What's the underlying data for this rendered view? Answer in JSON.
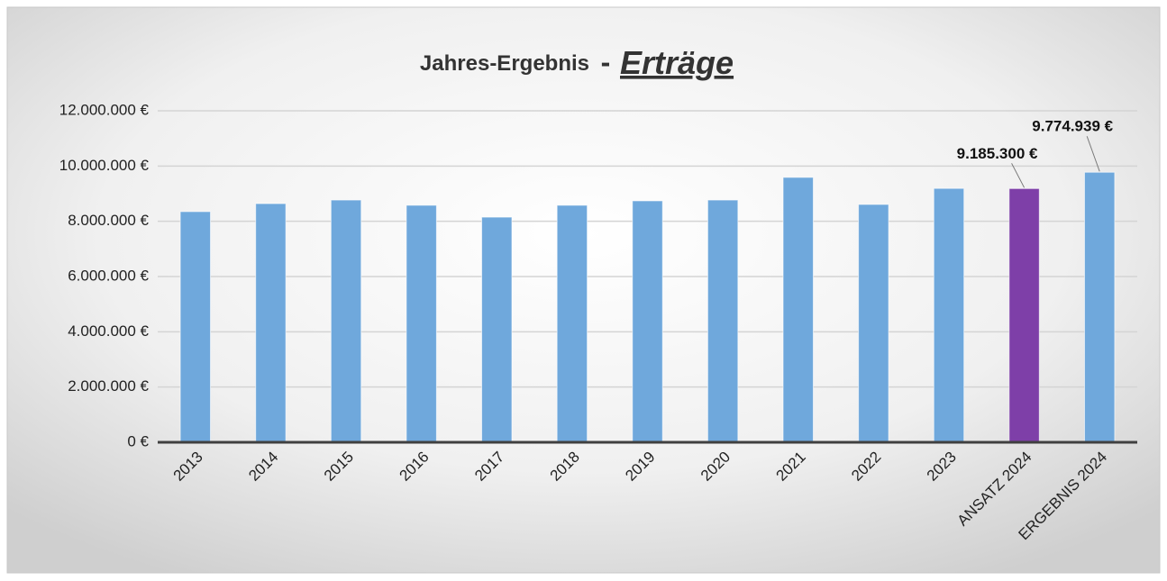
{
  "chart_data": {
    "type": "bar",
    "title": "Jahres-Ergebnis",
    "title_separator": "-",
    "title_highlight": "Erträge",
    "categories": [
      "2013",
      "2014",
      "2015",
      "2016",
      "2017",
      "2018",
      "2019",
      "2020",
      "2021",
      "2022",
      "2023",
      "ANSATZ 2024",
      "ERGEBNIS 2024"
    ],
    "values": [
      8350000,
      8640000,
      8770000,
      8580000,
      8150000,
      8580000,
      8740000,
      8770000,
      9590000,
      8610000,
      9190000,
      9185300,
      9774939
    ],
    "value_labels": [
      null,
      null,
      null,
      null,
      null,
      null,
      null,
      null,
      null,
      null,
      null,
      "9.185.300 €",
      "9.774.939 €"
    ],
    "colors": [
      "#6fa8dc",
      "#6fa8dc",
      "#6fa8dc",
      "#6fa8dc",
      "#6fa8dc",
      "#6fa8dc",
      "#6fa8dc",
      "#6fa8dc",
      "#6fa8dc",
      "#6fa8dc",
      "#6fa8dc",
      "#7e3fa8",
      "#6fa8dc"
    ],
    "ylim": [
      0,
      12000000
    ],
    "yticks": [
      {
        "value": 0,
        "label": "0 €"
      },
      {
        "value": 2000000,
        "label": "2.000.000 €"
      },
      {
        "value": 4000000,
        "label": "4.000.000 €"
      },
      {
        "value": 6000000,
        "label": "6.000.000 €"
      },
      {
        "value": 8000000,
        "label": "8.000.000 €"
      },
      {
        "value": 10000000,
        "label": "10.000.000 €"
      },
      {
        "value": 12000000,
        "label": "12.000.000 €"
      }
    ],
    "grid": true
  }
}
